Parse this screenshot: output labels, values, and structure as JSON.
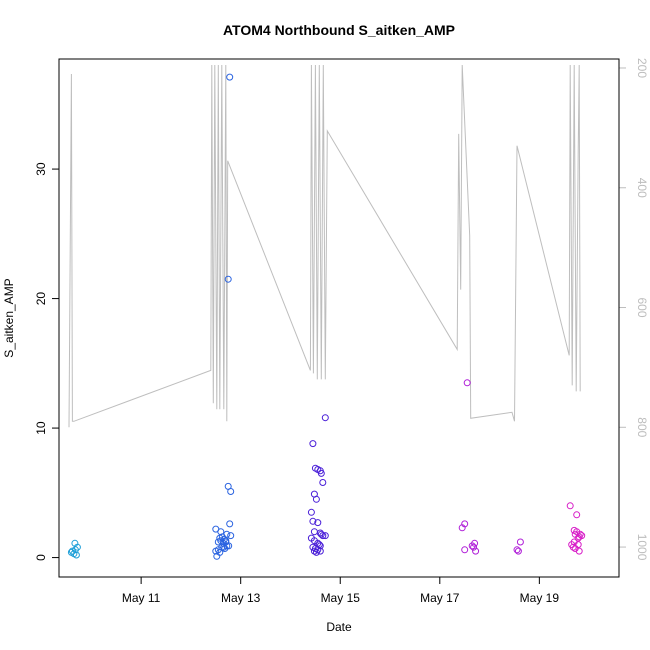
{
  "chart_data": {
    "type": "scatter",
    "title": "ATOM4 Northbound S_aitken_AMP",
    "xlabel": "Date",
    "ylabel": "S_aitken_AMP",
    "x_range_days": [
      9.35,
      20.6
    ],
    "y_range": [
      -1.5,
      38.5
    ],
    "y2_range": [
      1050,
      185
    ],
    "x_ticks": [
      {
        "value": 11,
        "label": "May 11"
      },
      {
        "value": 13,
        "label": "May 13"
      },
      {
        "value": 15,
        "label": "May 15"
      },
      {
        "value": 17,
        "label": "May 17"
      },
      {
        "value": 19,
        "label": "May 19"
      }
    ],
    "y_ticks": [
      0,
      10,
      20,
      30
    ],
    "y2_ticks": [
      200,
      400,
      600,
      800,
      1000
    ],
    "grid": false,
    "colors": {
      "axis": "#000000",
      "secondary_axis": "#bdbdbd",
      "depth_line": "#bebebe"
    },
    "series": [
      {
        "color": "#1e9fd8",
        "points": [
          [
            9.62,
            0.5
          ],
          [
            9.65,
            0.3
          ],
          [
            9.68,
            0.6
          ],
          [
            9.7,
            0.2
          ],
          [
            9.72,
            0.8
          ],
          [
            9.67,
            1.1
          ],
          [
            9.6,
            0.4
          ]
        ]
      },
      {
        "color": "#2a63e0",
        "points": [
          [
            12.5,
            2.2
          ],
          [
            12.52,
            0.1
          ],
          [
            12.55,
            1.2
          ],
          [
            12.58,
            1.5
          ],
          [
            12.6,
            1.3
          ],
          [
            12.62,
            0.8
          ],
          [
            12.63,
            1.6
          ],
          [
            12.65,
            1.1
          ],
          [
            12.67,
            1.4
          ],
          [
            12.68,
            0.7
          ],
          [
            12.7,
            1.2
          ],
          [
            12.72,
            0.9
          ],
          [
            12.5,
            0.5
          ],
          [
            12.55,
            0.6
          ],
          [
            12.58,
            0.4
          ],
          [
            12.6,
            2.0
          ],
          [
            12.75,
            21.5
          ],
          [
            12.78,
            37.1
          ],
          [
            12.75,
            5.5
          ],
          [
            12.8,
            5.1
          ],
          [
            12.78,
            2.6
          ],
          [
            12.8,
            1.7
          ],
          [
            12.76,
            0.9
          ],
          [
            12.72,
            1.8
          ],
          [
            12.66,
            0.8
          ],
          [
            12.7,
            1.3
          ]
        ]
      },
      {
        "color": "#4a1fd8",
        "points": [
          [
            14.45,
            8.8
          ],
          [
            14.5,
            6.9
          ],
          [
            14.55,
            6.8
          ],
          [
            14.6,
            6.7
          ],
          [
            14.62,
            6.5
          ],
          [
            14.65,
            5.8
          ],
          [
            14.48,
            4.9
          ],
          [
            14.52,
            4.5
          ],
          [
            14.42,
            3.5
          ],
          [
            14.45,
            2.8
          ],
          [
            14.55,
            2.7
          ],
          [
            14.48,
            2.0
          ],
          [
            14.6,
            1.9
          ],
          [
            14.62,
            1.8
          ],
          [
            14.65,
            1.7
          ],
          [
            14.42,
            1.5
          ],
          [
            14.48,
            1.3
          ],
          [
            14.55,
            1.1
          ],
          [
            14.58,
            1.0
          ],
          [
            14.6,
            0.9
          ],
          [
            14.45,
            0.8
          ],
          [
            14.5,
            0.7
          ],
          [
            14.55,
            0.6
          ],
          [
            14.6,
            0.5
          ],
          [
            14.48,
            0.5
          ],
          [
            14.52,
            0.4
          ],
          [
            14.7,
            10.8
          ],
          [
            14.7,
            1.7
          ]
        ]
      },
      {
        "color": "#b01fd8",
        "points": [
          [
            17.45,
            2.3
          ],
          [
            17.5,
            2.6
          ],
          [
            17.55,
            13.5
          ],
          [
            17.5,
            0.6
          ],
          [
            17.65,
            0.9
          ],
          [
            17.7,
            1.1
          ],
          [
            17.68,
            0.8
          ],
          [
            17.72,
            0.5
          ],
          [
            18.55,
            0.6
          ],
          [
            18.58,
            0.5
          ],
          [
            18.62,
            1.2
          ]
        ]
      },
      {
        "color": "#d81fc8",
        "points": [
          [
            19.62,
            4.0
          ],
          [
            19.65,
            1.0
          ],
          [
            19.68,
            0.8
          ],
          [
            19.7,
            2.1
          ],
          [
            19.72,
            1.8
          ],
          [
            19.75,
            2.0
          ],
          [
            19.78,
            1.5
          ],
          [
            19.8,
            1.6
          ],
          [
            19.82,
            1.8
          ],
          [
            19.85,
            1.7
          ],
          [
            19.75,
            3.3
          ],
          [
            19.78,
            1.0
          ],
          [
            19.8,
            0.5
          ],
          [
            19.72,
            0.7
          ],
          [
            19.7,
            1.2
          ]
        ]
      }
    ],
    "depth_line": [
      [
        9.55,
        800
      ],
      [
        9.6,
        210
      ],
      [
        9.62,
        790
      ],
      [
        9.65,
        790
      ],
      [
        12.4,
        705
      ],
      [
        12.42,
        195
      ],
      [
        12.45,
        760
      ],
      [
        12.48,
        195
      ],
      [
        12.52,
        770
      ],
      [
        12.55,
        195
      ],
      [
        12.58,
        770
      ],
      [
        12.62,
        195
      ],
      [
        12.66,
        770
      ],
      [
        12.7,
        195
      ],
      [
        12.72,
        790
      ],
      [
        12.74,
        355
      ],
      [
        14.4,
        705
      ],
      [
        14.42,
        195
      ],
      [
        14.46,
        710
      ],
      [
        14.5,
        195
      ],
      [
        14.54,
        720
      ],
      [
        14.58,
        195
      ],
      [
        14.62,
        720
      ],
      [
        14.66,
        195
      ],
      [
        14.7,
        720
      ],
      [
        14.74,
        305
      ],
      [
        17.35,
        670
      ],
      [
        17.38,
        310
      ],
      [
        17.42,
        570
      ],
      [
        17.45,
        195
      ],
      [
        17.6,
        480
      ],
      [
        17.62,
        785
      ],
      [
        18.45,
        775
      ],
      [
        18.5,
        790
      ],
      [
        18.55,
        330
      ],
      [
        19.6,
        680
      ],
      [
        19.62,
        195
      ],
      [
        19.66,
        730
      ],
      [
        19.7,
        195
      ],
      [
        19.74,
        740
      ],
      [
        19.78,
        340
      ],
      [
        19.8,
        195
      ],
      [
        19.82,
        740
      ]
    ]
  }
}
